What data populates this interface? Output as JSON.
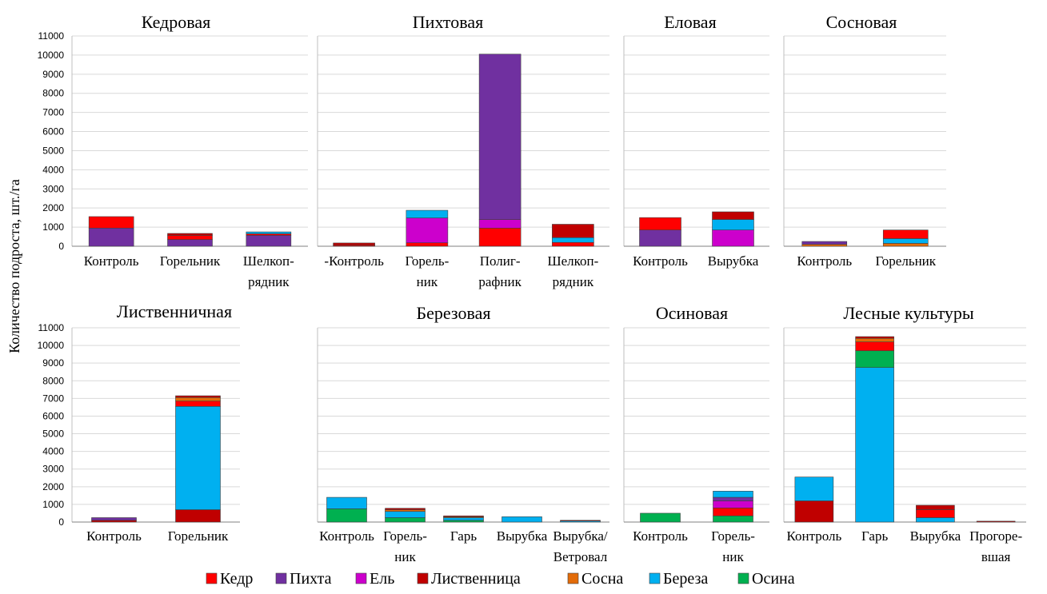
{
  "ylabel": "Количество подроста, шт./га",
  "legend": {
    "placement": "bottom",
    "items": [
      {
        "name": "Кедр",
        "color": "#ff0000"
      },
      {
        "name": "Пихта",
        "color": "#7030a0"
      },
      {
        "name": "Ель",
        "color": "#cc00cc"
      },
      {
        "name": "Лиственница",
        "color": "#c00000"
      },
      {
        "name": "Сосна",
        "color": "#e36c09"
      },
      {
        "name": "Береза",
        "color": "#00b0f0"
      },
      {
        "name": "Осина",
        "color": "#00b050"
      }
    ]
  },
  "chart_data": [
    {
      "type": "bar",
      "stacked": true,
      "title": "Кедровая",
      "ylim": [
        0,
        11000
      ],
      "yticks": [
        0,
        1000,
        2000,
        3000,
        4000,
        5000,
        6000,
        7000,
        8000,
        9000,
        10000,
        11000
      ],
      "grid": true,
      "categories": [
        [
          "Контроль"
        ],
        [
          "Горельник"
        ],
        [
          "Шелкоп-",
          "рядник"
        ]
      ],
      "series": [
        {
          "name": "Пихта",
          "values": [
            950,
            350,
            570
          ]
        },
        {
          "name": "Кедр",
          "values": [
            600,
            220,
            80
          ]
        },
        {
          "name": "Лиственница",
          "values": [
            0,
            100,
            0
          ]
        },
        {
          "name": "Береза",
          "values": [
            0,
            0,
            100
          ]
        }
      ]
    },
    {
      "type": "bar",
      "stacked": true,
      "title": "Пихтовая",
      "ylim": [
        0,
        11000
      ],
      "grid": true,
      "categories": [
        [
          "-Контроль"
        ],
        [
          "Горель-",
          "ник"
        ],
        [
          "Полиг-",
          "рафник"
        ],
        [
          "Шелкоп-",
          "рядник"
        ]
      ],
      "series": [
        {
          "name": "Кедр",
          "values": [
            50,
            180,
            950,
            200
          ]
        },
        {
          "name": "Лиственница",
          "values": [
            120,
            0,
            0,
            0
          ]
        },
        {
          "name": "Ель",
          "values": [
            0,
            1300,
            450,
            0
          ]
        },
        {
          "name": "Береза",
          "values": [
            0,
            400,
            0,
            250
          ]
        },
        {
          "name": "Пихта",
          "values": [
            0,
            0,
            8650,
            0
          ]
        },
        {
          "name": "Лиственница",
          "values": [
            0,
            0,
            0,
            700
          ]
        }
      ]
    },
    {
      "type": "bar",
      "stacked": true,
      "title": "Еловая",
      "ylim": [
        0,
        11000
      ],
      "grid": true,
      "categories": [
        [
          "Контроль"
        ],
        [
          "Вырубка"
        ]
      ],
      "series": [
        {
          "name": "Пихта",
          "values": [
            850,
            0
          ]
        },
        {
          "name": "Ель",
          "values": [
            0,
            850
          ]
        },
        {
          "name": "Береза",
          "values": [
            0,
            550
          ]
        },
        {
          "name": "Кедр",
          "values": [
            650,
            0
          ]
        },
        {
          "name": "Лиственница",
          "values": [
            0,
            400
          ]
        }
      ]
    },
    {
      "type": "bar",
      "stacked": true,
      "title": "Сосновая",
      "ylim": [
        0,
        11000
      ],
      "grid": true,
      "categories": [
        [
          "Контроль"
        ],
        [
          "Горельник"
        ]
      ],
      "series": [
        {
          "name": "Сосна",
          "values": [
            100,
            150
          ]
        },
        {
          "name": "Пихта",
          "values": [
            150,
            0
          ]
        },
        {
          "name": "Береза",
          "values": [
            0,
            250
          ]
        },
        {
          "name": "Кедр",
          "values": [
            0,
            450
          ]
        }
      ]
    },
    {
      "type": "bar",
      "stacked": true,
      "title": "Лиственничная",
      "ylim": [
        0,
        11000
      ],
      "yticks": [
        0,
        1000,
        2000,
        3000,
        4000,
        5000,
        6000,
        7000,
        8000,
        9000,
        10000,
        11000
      ],
      "grid": true,
      "categories": [
        [
          "Контроль"
        ],
        [
          "Горельник"
        ]
      ],
      "series": [
        {
          "name": "Лиственница",
          "values": [
            100,
            700
          ]
        },
        {
          "name": "Пихта",
          "values": [
            150,
            0
          ]
        },
        {
          "name": "Береза",
          "values": [
            0,
            5850
          ]
        },
        {
          "name": "Кедр",
          "values": [
            0,
            300
          ]
        },
        {
          "name": "Сосна",
          "values": [
            0,
            200
          ]
        },
        {
          "name": "Лиственница",
          "values": [
            0,
            100
          ]
        }
      ]
    },
    {
      "type": "bar",
      "stacked": true,
      "title": "Березовая",
      "ylim": [
        0,
        11000
      ],
      "grid": true,
      "categories": [
        [
          "Контроль"
        ],
        [
          "Горель-",
          "ник"
        ],
        [
          "Гарь"
        ],
        [
          "Вырубка"
        ],
        [
          "Вырубка/",
          "Ветровал"
        ]
      ],
      "series": [
        {
          "name": "Осина",
          "values": [
            750,
            250,
            100,
            0,
            0
          ]
        },
        {
          "name": "Береза",
          "values": [
            650,
            350,
            150,
            300,
            60
          ]
        },
        {
          "name": "Сосна",
          "values": [
            0,
            100,
            50,
            0,
            0
          ]
        },
        {
          "name": "Лиственница",
          "values": [
            0,
            80,
            50,
            0,
            40
          ]
        },
        {
          "name": "Кедр",
          "values": [
            0,
            0,
            0,
            0,
            0
          ]
        }
      ]
    },
    {
      "type": "bar",
      "stacked": true,
      "title": "Осиновая",
      "ylim": [
        0,
        11000
      ],
      "grid": true,
      "categories": [
        [
          "Контроль"
        ],
        [
          "Горель-",
          "ник"
        ]
      ],
      "series": [
        {
          "name": "Осина",
          "values": [
            500,
            350
          ]
        },
        {
          "name": "Кедр",
          "values": [
            0,
            450
          ]
        },
        {
          "name": "Ель",
          "values": [
            0,
            400
          ]
        },
        {
          "name": "Пихта",
          "values": [
            0,
            200
          ]
        },
        {
          "name": "Береза",
          "values": [
            0,
            350
          ]
        }
      ]
    },
    {
      "type": "bar",
      "stacked": true,
      "title": "Лесные культуры",
      "ylim": [
        0,
        11000
      ],
      "grid": true,
      "categories": [
        [
          "Контроль"
        ],
        [
          "Гарь"
        ],
        [
          "Вырубка"
        ],
        [
          "Прогоре-",
          "вшая"
        ]
      ],
      "series": [
        {
          "name": "Лиственница",
          "values": [
            1200,
            0,
            0,
            50
          ]
        },
        {
          "name": "Береза",
          "values": [
            1350,
            8750,
            250,
            0
          ]
        },
        {
          "name": "Осина",
          "values": [
            0,
            950,
            0,
            0
          ]
        },
        {
          "name": "Кедр",
          "values": [
            0,
            500,
            450,
            0
          ]
        },
        {
          "name": "Сосна",
          "values": [
            0,
            200,
            0,
            0
          ]
        },
        {
          "name": "Лиственница",
          "values": [
            0,
            100,
            250,
            0
          ]
        }
      ]
    }
  ]
}
